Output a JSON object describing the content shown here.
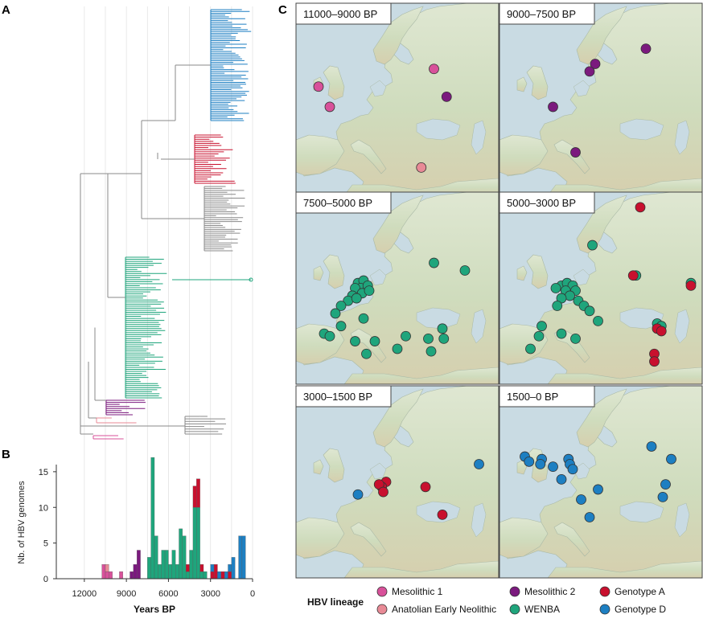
{
  "panels": {
    "a": "A",
    "b": "B",
    "c": "C"
  },
  "colors": {
    "Mesolithic 1": "#d8519a",
    "Anatolian Early Neolithic": "#e88a96",
    "Mesolithic 2": "#7b1a7e",
    "WENBA": "#1fa57c",
    "Genotype A": "#c8102e",
    "Genotype D": "#1d7fc2",
    "other": "#8a8a8a"
  },
  "chart_data": [
    {
      "type": "tree",
      "panel": "A",
      "x_axis": "Years BP",
      "clades_top_to_bottom": [
        "Genotype D",
        "Genotype A",
        "other",
        "WENBA",
        "Mesolithic 2",
        "Anatolian Early Neolithic",
        "other",
        "Mesolithic 1"
      ]
    },
    {
      "type": "bar",
      "panel": "B",
      "xlabel": "Years BP",
      "ylabel": "Nb. of HBV genomes",
      "xlim": [
        14000,
        0
      ],
      "ylim": [
        0,
        16
      ],
      "x_ticks": [
        "12000",
        "9000",
        "6000",
        "3000",
        "0"
      ],
      "y_ticks": [
        "0",
        "5",
        "10",
        "15"
      ],
      "bin_width_years": 250,
      "series_order": [
        "Mesolithic 1",
        "Anatolian Early Neolithic",
        "Mesolithic 2",
        "WENBA",
        "Genotype A",
        "Genotype D"
      ],
      "bins": [
        {
          "x": 10625,
          "Mesolithic 1": 2
        },
        {
          "x": 10375,
          "Mesolithic 1": 1,
          "Anatolian Early Neolithic": 1
        },
        {
          "x": 10125,
          "Mesolithic 1": 1
        },
        {
          "x": 9375,
          "Mesolithic 1": 1
        },
        {
          "x": 8625,
          "Mesolithic 2": 1
        },
        {
          "x": 8375,
          "Mesolithic 2": 2
        },
        {
          "x": 8125,
          "Mesolithic 2": 4
        },
        {
          "x": 7375,
          "WENBA": 3
        },
        {
          "x": 7125,
          "WENBA": 17
        },
        {
          "x": 6875,
          "WENBA": 6
        },
        {
          "x": 6625,
          "WENBA": 2
        },
        {
          "x": 6375,
          "WENBA": 4
        },
        {
          "x": 6125,
          "WENBA": 4
        },
        {
          "x": 5875,
          "WENBA": 2
        },
        {
          "x": 5625,
          "WENBA": 4
        },
        {
          "x": 5375,
          "WENBA": 2
        },
        {
          "x": 5125,
          "WENBA": 7
        },
        {
          "x": 4875,
          "WENBA": 6
        },
        {
          "x": 4625,
          "WENBA": 1,
          "Genotype A": 1
        },
        {
          "x": 4375,
          "WENBA": 4
        },
        {
          "x": 4125,
          "WENBA": 10,
          "Genotype A": 3
        },
        {
          "x": 3875,
          "WENBA": 10,
          "Genotype A": 4
        },
        {
          "x": 3625,
          "WENBA": 1,
          "Genotype A": 1
        },
        {
          "x": 3375,
          "WENBA": 1
        },
        {
          "x": 2875,
          "Genotype A": 1,
          "Genotype D": 1
        },
        {
          "x": 2625,
          "Genotype A": 2
        },
        {
          "x": 2375,
          "Genotype D": 1
        },
        {
          "x": 2125,
          "Genotype A": 1
        },
        {
          "x": 1875,
          "Genotype D": 1
        },
        {
          "x": 1625,
          "Genotype A": 1,
          "Genotype D": 1
        },
        {
          "x": 1375,
          "Genotype D": 3
        },
        {
          "x": 875,
          "Genotype D": 6
        },
        {
          "x": 625,
          "Genotype D": 6
        }
      ]
    },
    {
      "type": "scatter",
      "panel": "C",
      "maps": [
        {
          "title": "11000–9000 BP",
          "points": [
            {
              "lon": 37,
              "lat": 57,
              "lineage": "Mesolithic 1"
            },
            {
              "lon": -4,
              "lat": 53.5,
              "lineage": "Mesolithic 1"
            },
            {
              "lon": 0,
              "lat": 49.5,
              "lineage": "Mesolithic 1"
            },
            {
              "lon": 41.5,
              "lat": 51.5,
              "lineage": "Mesolithic 2"
            },
            {
              "lon": 32.5,
              "lat": 37.5,
              "lineage": "Anatolian Early Neolithic"
            }
          ]
        },
        {
          "title": "9000–7500 BP",
          "points": [
            {
              "lon": 40,
              "lat": 61,
              "lineage": "Mesolithic 2"
            },
            {
              "lon": 22,
              "lat": 58,
              "lineage": "Mesolithic 2"
            },
            {
              "lon": 20,
              "lat": 56.5,
              "lineage": "Mesolithic 2"
            },
            {
              "lon": 7,
              "lat": 49.5,
              "lineage": "Mesolithic 2"
            },
            {
              "lon": 15,
              "lat": 40.5,
              "lineage": "Mesolithic 2"
            }
          ]
        },
        {
          "title": "7500–5000 BP",
          "points": [
            {
              "lon": 37,
              "lat": 56,
              "lineage": "WENBA"
            },
            {
              "lon": 48,
              "lat": 54.5,
              "lineage": "WENBA"
            },
            {
              "lon": 10,
              "lat": 52,
              "lineage": "WENBA"
            },
            {
              "lon": 12,
              "lat": 52.5,
              "lineage": "WENBA"
            },
            {
              "lon": 11,
              "lat": 51,
              "lineage": "WENBA"
            },
            {
              "lon": 13.5,
              "lat": 51.5,
              "lineage": "WENBA"
            },
            {
              "lon": 9,
              "lat": 51,
              "lineage": "WENBA"
            },
            {
              "lon": 11.5,
              "lat": 50,
              "lineage": "WENBA"
            },
            {
              "lon": 14,
              "lat": 50.5,
              "lineage": "WENBA"
            },
            {
              "lon": 8,
              "lat": 49.5,
              "lineage": "WENBA"
            },
            {
              "lon": 6.5,
              "lat": 48.5,
              "lineage": "WENBA"
            },
            {
              "lon": 9.5,
              "lat": 49,
              "lineage": "WENBA"
            },
            {
              "lon": 4,
              "lat": 47.5,
              "lineage": "WENBA"
            },
            {
              "lon": 2,
              "lat": 46,
              "lineage": "WENBA"
            },
            {
              "lon": 12,
              "lat": 45,
              "lineage": "WENBA"
            },
            {
              "lon": 4,
              "lat": 43.5,
              "lineage": "WENBA"
            },
            {
              "lon": -2,
              "lat": 42,
              "lineage": "WENBA"
            },
            {
              "lon": 0,
              "lat": 41.5,
              "lineage": "WENBA"
            },
            {
              "lon": 9,
              "lat": 40.5,
              "lineage": "WENBA"
            },
            {
              "lon": 16,
              "lat": 40.5,
              "lineage": "WENBA"
            },
            {
              "lon": 27,
              "lat": 41.5,
              "lineage": "WENBA"
            },
            {
              "lon": 40,
              "lat": 43,
              "lineage": "WENBA"
            },
            {
              "lon": 35,
              "lat": 41,
              "lineage": "WENBA"
            },
            {
              "lon": 40.5,
              "lat": 41,
              "lineage": "WENBA"
            },
            {
              "lon": 24,
              "lat": 39,
              "lineage": "WENBA"
            },
            {
              "lon": 36,
              "lat": 38.5,
              "lineage": "WENBA"
            },
            {
              "lon": 13,
              "lat": 38,
              "lineage": "WENBA"
            }
          ]
        },
        {
          "title": "5000–3000 BP",
          "points": [
            {
              "lon": 38,
              "lat": 67,
              "lineage": "Genotype A"
            },
            {
              "lon": 21,
              "lat": 59.5,
              "lineage": "WENBA"
            },
            {
              "lon": 36.5,
              "lat": 53.5,
              "lineage": "WENBA"
            },
            {
              "lon": 35.5,
              "lat": 53.5,
              "lineage": "Genotype A"
            },
            {
              "lon": 56,
              "lat": 52,
              "lineage": "WENBA"
            },
            {
              "lon": 56,
              "lat": 51.5,
              "lineage": "Genotype A"
            },
            {
              "lon": 10,
              "lat": 51.5,
              "lineage": "WENBA"
            },
            {
              "lon": 12,
              "lat": 52,
              "lineage": "WENBA"
            },
            {
              "lon": 14,
              "lat": 51.5,
              "lineage": "WENBA"
            },
            {
              "lon": 11.5,
              "lat": 50.5,
              "lineage": "WENBA"
            },
            {
              "lon": 15,
              "lat": 50.5,
              "lineage": "WENBA"
            },
            {
              "lon": 13,
              "lat": 49.5,
              "lineage": "WENBA"
            },
            {
              "lon": 10,
              "lat": 49,
              "lineage": "WENBA"
            },
            {
              "lon": 8,
              "lat": 51,
              "lineage": "WENBA"
            },
            {
              "lon": 16,
              "lat": 48.5,
              "lineage": "WENBA"
            },
            {
              "lon": 18,
              "lat": 47.5,
              "lineage": "WENBA"
            },
            {
              "lon": 20,
              "lat": 46.5,
              "lineage": "WENBA"
            },
            {
              "lon": 8.5,
              "lat": 47.5,
              "lineage": "WENBA"
            },
            {
              "lon": 23,
              "lat": 44.5,
              "lineage": "WENBA"
            },
            {
              "lon": 3,
              "lat": 43.5,
              "lineage": "WENBA"
            },
            {
              "lon": 10,
              "lat": 42,
              "lineage": "WENBA"
            },
            {
              "lon": 15,
              "lat": 41,
              "lineage": "WENBA"
            },
            {
              "lon": 2,
              "lat": 41.5,
              "lineage": "WENBA"
            },
            {
              "lon": -1,
              "lat": 39,
              "lineage": "WENBA"
            },
            {
              "lon": 44,
              "lat": 44,
              "lineage": "WENBA"
            },
            {
              "lon": 45.5,
              "lat": 43.5,
              "lineage": "WENBA"
            },
            {
              "lon": 44,
              "lat": 43,
              "lineage": "Genotype A"
            },
            {
              "lon": 45.5,
              "lat": 42.5,
              "lineage": "Genotype A"
            },
            {
              "lon": 43,
              "lat": 38,
              "lineage": "Genotype A"
            },
            {
              "lon": 43,
              "lat": 36.5,
              "lineage": "Genotype A"
            }
          ]
        },
        {
          "title": "3000–1500 BP",
          "points": [
            {
              "lon": 53,
              "lat": 54.5,
              "lineage": "Genotype D"
            },
            {
              "lon": 20,
              "lat": 51,
              "lineage": "Genotype A"
            },
            {
              "lon": 18.5,
              "lat": 50,
              "lineage": "Genotype A"
            },
            {
              "lon": 17.5,
              "lat": 50.5,
              "lineage": "Genotype A"
            },
            {
              "lon": 19,
              "lat": 49,
              "lineage": "Genotype A"
            },
            {
              "lon": 34,
              "lat": 50,
              "lineage": "Genotype A"
            },
            {
              "lon": 10,
              "lat": 48.5,
              "lineage": "Genotype D"
            },
            {
              "lon": 40,
              "lat": 44.5,
              "lineage": "Genotype A"
            }
          ]
        },
        {
          "title": "1500–0 BP",
          "points": [
            {
              "lon": 42,
              "lat": 58,
              "lineage": "Genotype D"
            },
            {
              "lon": 49,
              "lat": 55.5,
              "lineage": "Genotype D"
            },
            {
              "lon": -3,
              "lat": 56,
              "lineage": "Genotype D"
            },
            {
              "lon": -1.5,
              "lat": 55,
              "lineage": "Genotype D"
            },
            {
              "lon": 3,
              "lat": 55.5,
              "lineage": "Genotype D"
            },
            {
              "lon": 2.5,
              "lat": 54.5,
              "lineage": "Genotype D"
            },
            {
              "lon": 12.5,
              "lat": 55.5,
              "lineage": "Genotype D"
            },
            {
              "lon": 13,
              "lat": 54.5,
              "lineage": "Genotype D"
            },
            {
              "lon": 14,
              "lat": 53.5,
              "lineage": "Genotype D"
            },
            {
              "lon": 7,
              "lat": 54,
              "lineage": "Genotype D"
            },
            {
              "lon": 10,
              "lat": 51.5,
              "lineage": "Genotype D"
            },
            {
              "lon": 47,
              "lat": 50.5,
              "lineage": "Genotype D"
            },
            {
              "lon": 23,
              "lat": 49.5,
              "lineage": "Genotype D"
            },
            {
              "lon": 46,
              "lat": 48,
              "lineage": "Genotype D"
            },
            {
              "lon": 17,
              "lat": 47.5,
              "lineage": "Genotype D"
            },
            {
              "lon": 20,
              "lat": 44,
              "lineage": "Genotype D"
            }
          ]
        }
      ],
      "legend_title": "HBV lineage",
      "legend": [
        "Mesolithic 1",
        "Mesolithic 2",
        "Genotype A",
        "Anatolian Early Neolithic",
        "WENBA",
        "Genotype D"
      ]
    }
  ]
}
